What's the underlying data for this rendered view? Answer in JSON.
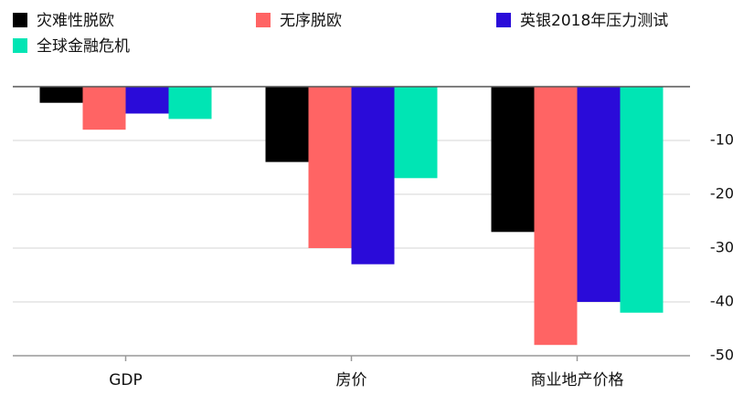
{
  "chart_data": {
    "type": "bar",
    "categories": [
      "GDP",
      "房价",
      "商业地产价格"
    ],
    "series": [
      {
        "name": "灾难性脱欧",
        "color": "#000000",
        "values": [
          -3,
          -14,
          -27
        ]
      },
      {
        "name": "无序脱欧",
        "color": "#ff6464",
        "values": [
          -8,
          -30,
          -48
        ]
      },
      {
        "name": "英银2018年压力测试",
        "color": "#2a0bd9",
        "values": [
          -5,
          -33,
          -40
        ]
      },
      {
        "name": "全球金融危机",
        "color": "#00e5b4",
        "values": [
          -6,
          -17,
          -42
        ]
      }
    ],
    "ylim": [
      -50,
      0
    ],
    "yticks": [
      -10,
      -20,
      -30,
      -40,
      -50
    ],
    "grid": true
  }
}
